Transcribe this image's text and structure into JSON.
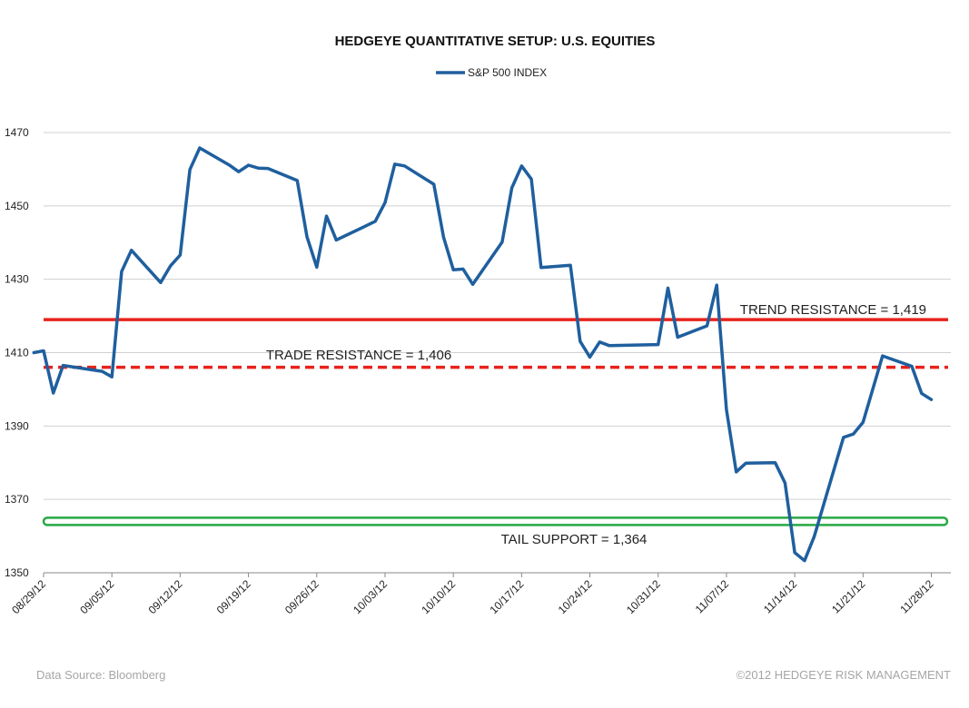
{
  "chart_data": {
    "type": "line",
    "title": "HEDGEYE QUANTITATIVE SETUP: U.S. EQUITIES",
    "legend": {
      "position": "top-center",
      "entries": [
        "S&P 500 INDEX"
      ]
    },
    "xlabel": "",
    "ylabel": "",
    "ylim": [
      1350,
      1470
    ],
    "yticks": [
      1350,
      1370,
      1390,
      1410,
      1430,
      1450,
      1470
    ],
    "xlim": [
      "2012-08-29",
      "2012-11-30"
    ],
    "xticks": [
      {
        "date": "2012-08-29",
        "label": "08/29/12"
      },
      {
        "date": "2012-09-05",
        "label": "09/05/12"
      },
      {
        "date": "2012-09-12",
        "label": "09/12/12"
      },
      {
        "date": "2012-09-19",
        "label": "09/19/12"
      },
      {
        "date": "2012-09-26",
        "label": "09/26/12"
      },
      {
        "date": "2012-10-03",
        "label": "10/03/12"
      },
      {
        "date": "2012-10-10",
        "label": "10/10/12"
      },
      {
        "date": "2012-10-17",
        "label": "10/17/12"
      },
      {
        "date": "2012-10-24",
        "label": "10/24/12"
      },
      {
        "date": "2012-10-31",
        "label": "10/31/12"
      },
      {
        "date": "2012-11-07",
        "label": "11/07/12"
      },
      {
        "date": "2012-11-14",
        "label": "11/14/12"
      },
      {
        "date": "2012-11-21",
        "label": "11/21/12"
      },
      {
        "date": "2012-11-28",
        "label": "11/28/12"
      }
    ],
    "grid": {
      "horizontal": true,
      "vertical": false
    },
    "series": [
      {
        "name": "S&P 500 INDEX",
        "color": "#1f5f9e",
        "points": [
          {
            "x": "2012-08-28",
            "y": 1410
          },
          {
            "x": "2012-08-29",
            "y": 1410.5
          },
          {
            "x": "2012-08-30",
            "y": 1399
          },
          {
            "x": "2012-08-31",
            "y": 1406.5
          },
          {
            "x": "2012-09-04",
            "y": 1404.9
          },
          {
            "x": "2012-09-05",
            "y": 1403.4
          },
          {
            "x": "2012-09-06",
            "y": 1432.1
          },
          {
            "x": "2012-09-07",
            "y": 1437.9
          },
          {
            "x": "2012-09-10",
            "y": 1429.1
          },
          {
            "x": "2012-09-11",
            "y": 1433.6
          },
          {
            "x": "2012-09-12",
            "y": 1436.6
          },
          {
            "x": "2012-09-13",
            "y": 1459.9
          },
          {
            "x": "2012-09-14",
            "y": 1465.8
          },
          {
            "x": "2012-09-17",
            "y": 1461.2
          },
          {
            "x": "2012-09-18",
            "y": 1459.3
          },
          {
            "x": "2012-09-19",
            "y": 1461.1
          },
          {
            "x": "2012-09-20",
            "y": 1460.3
          },
          {
            "x": "2012-09-21",
            "y": 1460.2
          },
          {
            "x": "2012-09-24",
            "y": 1456.9
          },
          {
            "x": "2012-09-25",
            "y": 1441.6
          },
          {
            "x": "2012-09-26",
            "y": 1433.3
          },
          {
            "x": "2012-09-27",
            "y": 1447.2
          },
          {
            "x": "2012-09-28",
            "y": 1440.7
          },
          {
            "x": "2012-10-01",
            "y": 1444.5
          },
          {
            "x": "2012-10-02",
            "y": 1445.8
          },
          {
            "x": "2012-10-03",
            "y": 1450.9
          },
          {
            "x": "2012-10-04",
            "y": 1461.4
          },
          {
            "x": "2012-10-05",
            "y": 1460.9
          },
          {
            "x": "2012-10-08",
            "y": 1455.9
          },
          {
            "x": "2012-10-09",
            "y": 1441.5
          },
          {
            "x": "2012-10-10",
            "y": 1432.6
          },
          {
            "x": "2012-10-11",
            "y": 1432.8
          },
          {
            "x": "2012-10-12",
            "y": 1428.6
          },
          {
            "x": "2012-10-15",
            "y": 1440.1
          },
          {
            "x": "2012-10-16",
            "y": 1454.9
          },
          {
            "x": "2012-10-17",
            "y": 1460.9
          },
          {
            "x": "2012-10-18",
            "y": 1457.3
          },
          {
            "x": "2012-10-19",
            "y": 1433.2
          },
          {
            "x": "2012-10-22",
            "y": 1433.8
          },
          {
            "x": "2012-10-23",
            "y": 1413.1
          },
          {
            "x": "2012-10-24",
            "y": 1408.8
          },
          {
            "x": "2012-10-25",
            "y": 1412.9
          },
          {
            "x": "2012-10-26",
            "y": 1411.9
          },
          {
            "x": "2012-10-31",
            "y": 1412.2
          },
          {
            "x": "2012-11-01",
            "y": 1427.6
          },
          {
            "x": "2012-11-02",
            "y": 1414.2
          },
          {
            "x": "2012-11-05",
            "y": 1417.3
          },
          {
            "x": "2012-11-06",
            "y": 1428.4
          },
          {
            "x": "2012-11-07",
            "y": 1394.5
          },
          {
            "x": "2012-11-08",
            "y": 1377.5
          },
          {
            "x": "2012-11-09",
            "y": 1379.9
          },
          {
            "x": "2012-11-12",
            "y": 1380.0
          },
          {
            "x": "2012-11-13",
            "y": 1374.5
          },
          {
            "x": "2012-11-14",
            "y": 1355.5
          },
          {
            "x": "2012-11-15",
            "y": 1353.3
          },
          {
            "x": "2012-11-16",
            "y": 1359.9
          },
          {
            "x": "2012-11-19",
            "y": 1386.9
          },
          {
            "x": "2012-11-20",
            "y": 1387.8
          },
          {
            "x": "2012-11-21",
            "y": 1391.0
          },
          {
            "x": "2012-11-23",
            "y": 1409.1
          },
          {
            "x": "2012-11-26",
            "y": 1406.3
          },
          {
            "x": "2012-11-27",
            "y": 1398.9
          },
          {
            "x": "2012-11-28",
            "y": 1397.2
          }
        ]
      }
    ],
    "levels": [
      {
        "label": "TREND RESISTANCE = 1,419",
        "value": 1419,
        "color": "#e8231c",
        "style": "solid"
      },
      {
        "label": "TRADE RESISTANCE = 1,406",
        "value": 1406,
        "color": "#e8231c",
        "style": "dashed"
      },
      {
        "label": "TAIL SUPPORT = 1,364",
        "value": 1364,
        "color": "#27a844",
        "style": "solid"
      }
    ]
  },
  "footer": {
    "source": "Data Source: Bloomberg",
    "copyright": "©2012 HEDGEYE RISK MANAGEMENT"
  }
}
